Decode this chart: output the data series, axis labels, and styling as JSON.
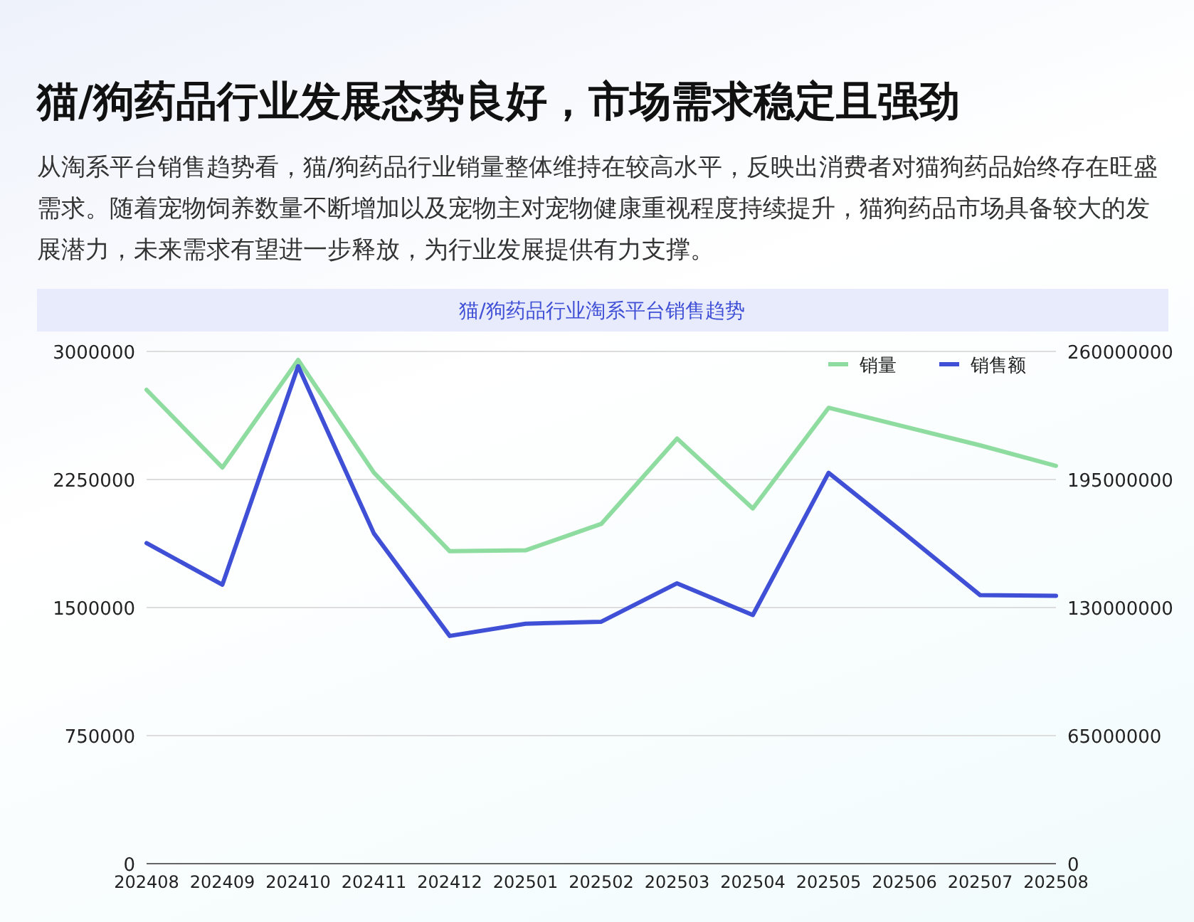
{
  "chart_data": {
    "type": "line",
    "title": "猫/狗药品行业发展态势良好，市场需求稳定且强劲",
    "subtitle": "从淘系平台销售趋势看，猫/狗药品行业销量整体维持在较高水平，反映出消费者对猫狗药品始终存在旺盛需求。随着宠物饲养数量不断增加以及宠物主对宠物健康重视程度持续提升，猫狗药品市场具备较大的发展潜力，未来需求有望进一步释放，为行业发展提供有力支撑。",
    "annotations": [
      "猫/狗药品行业淘系平台销售趋势"
    ],
    "categories": [
      "202408",
      "202409",
      "202410",
      "202411",
      "202412",
      "202501",
      "202502",
      "202503",
      "202504",
      "202505",
      "202506",
      "202507",
      "202508"
    ],
    "series": [
      {
        "name": "销量",
        "color": "#8fdca0",
        "values": [
          2775000,
          2320000,
          2950000,
          2290000,
          1830000,
          1835000,
          1990000,
          2490000,
          2080000,
          2670000,
          2560000,
          2450000,
          2330000
        ]
      },
      {
        "name": "销售额",
        "color": "#3f4fd6",
        "axis": "y2",
        "values": [
          162700000,
          141600000,
          252500000,
          167600000,
          115600000,
          121800000,
          122800000,
          142300000,
          126200000,
          198400000,
          167600000,
          136300000,
          136000000
        ]
      }
    ],
    "ylim": [
      0,
      3000000
    ],
    "yticks": [
      0,
      750000,
      1500000,
      2250000,
      3000000
    ],
    "y2lim": [
      0,
      260000000
    ],
    "y2ticks": [
      0,
      65000000,
      130000000,
      195000000,
      260000000
    ],
    "grid": "y",
    "legend": "top right"
  }
}
